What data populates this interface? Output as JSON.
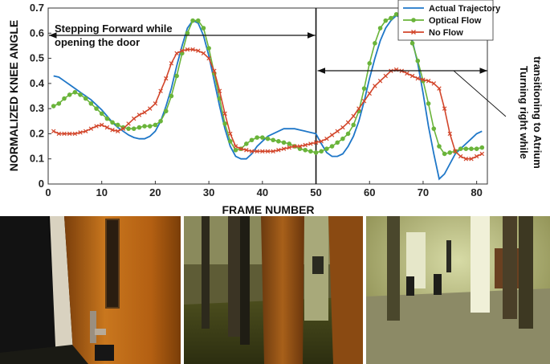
{
  "chart_data": {
    "type": "line",
    "xlabel": "FRAME NUMBER",
    "ylabel": "NORMALIZED KNEE ANGLE",
    "xlim": [
      0,
      82
    ],
    "ylim": [
      0,
      0.7
    ],
    "xticks": [
      0,
      10,
      20,
      30,
      40,
      50,
      60,
      70,
      80
    ],
    "yticks": [
      0,
      0.1,
      0.2,
      0.3,
      0.4,
      0.5,
      0.6,
      0.7
    ],
    "grid": false,
    "legend_position": "top-right",
    "vline_x": 50,
    "annotations": [
      {
        "lines": [
          "Stepping Forward while",
          "opening the door"
        ],
        "span": [
          0,
          50
        ]
      },
      {
        "lines": [
          "Turning right while",
          "transitioning to Atrium"
        ],
        "span": [
          50,
          82
        ]
      }
    ],
    "x": [
      1,
      2,
      3,
      4,
      5,
      6,
      7,
      8,
      9,
      10,
      11,
      12,
      13,
      14,
      15,
      16,
      17,
      18,
      19,
      20,
      21,
      22,
      23,
      24,
      25,
      26,
      27,
      28,
      29,
      30,
      31,
      32,
      33,
      34,
      35,
      36,
      37,
      38,
      39,
      40,
      41,
      42,
      43,
      44,
      45,
      46,
      47,
      48,
      49,
      50,
      51,
      52,
      53,
      54,
      55,
      56,
      57,
      58,
      59,
      60,
      61,
      62,
      63,
      64,
      65,
      66,
      67,
      68,
      69,
      70,
      71,
      72,
      73,
      74,
      75,
      76,
      77,
      78,
      79,
      80,
      81
    ],
    "series": [
      {
        "name": "Actual Trajectory",
        "color": "#1f77c8",
        "marker": "none",
        "values": [
          0.43,
          0.425,
          0.41,
          0.395,
          0.38,
          0.365,
          0.35,
          0.335,
          0.315,
          0.295,
          0.27,
          0.245,
          0.225,
          0.21,
          0.195,
          0.185,
          0.18,
          0.18,
          0.19,
          0.21,
          0.25,
          0.31,
          0.38,
          0.47,
          0.55,
          0.62,
          0.65,
          0.64,
          0.59,
          0.51,
          0.41,
          0.31,
          0.22,
          0.15,
          0.11,
          0.1,
          0.1,
          0.12,
          0.15,
          0.17,
          0.19,
          0.2,
          0.21,
          0.22,
          0.22,
          0.22,
          0.215,
          0.21,
          0.205,
          0.2,
          0.16,
          0.125,
          0.11,
          0.11,
          0.12,
          0.15,
          0.19,
          0.25,
          0.33,
          0.42,
          0.5,
          0.57,
          0.62,
          0.65,
          0.67,
          0.66,
          0.63,
          0.57,
          0.48,
          0.36,
          0.23,
          0.12,
          0.02,
          0.04,
          0.08,
          0.12,
          0.14,
          0.16,
          0.18,
          0.2,
          0.21
        ]
      },
      {
        "name": "Optical Flow",
        "color": "#6ab43a",
        "marker": "circle",
        "values": [
          0.31,
          0.32,
          0.34,
          0.355,
          0.365,
          0.355,
          0.34,
          0.32,
          0.3,
          0.28,
          0.26,
          0.245,
          0.235,
          0.225,
          0.22,
          0.22,
          0.225,
          0.23,
          0.23,
          0.235,
          0.25,
          0.29,
          0.35,
          0.43,
          0.52,
          0.6,
          0.65,
          0.65,
          0.62,
          0.54,
          0.44,
          0.34,
          0.24,
          0.17,
          0.135,
          0.14,
          0.16,
          0.175,
          0.185,
          0.185,
          0.18,
          0.175,
          0.17,
          0.165,
          0.16,
          0.15,
          0.14,
          0.135,
          0.13,
          0.125,
          0.13,
          0.14,
          0.15,
          0.165,
          0.18,
          0.2,
          0.235,
          0.29,
          0.38,
          0.48,
          0.56,
          0.62,
          0.65,
          0.66,
          0.675,
          0.66,
          0.62,
          0.56,
          0.49,
          0.41,
          0.32,
          0.22,
          0.15,
          0.12,
          0.125,
          0.13,
          0.14,
          0.14,
          0.14,
          0.14,
          0.145
        ]
      },
      {
        "name": "No Flow",
        "color": "#d2452a",
        "marker": "x",
        "values": [
          0.21,
          0.2,
          0.2,
          0.2,
          0.2,
          0.205,
          0.21,
          0.22,
          0.23,
          0.235,
          0.225,
          0.215,
          0.21,
          0.22,
          0.24,
          0.26,
          0.275,
          0.285,
          0.3,
          0.32,
          0.37,
          0.42,
          0.48,
          0.52,
          0.53,
          0.535,
          0.535,
          0.53,
          0.52,
          0.5,
          0.45,
          0.37,
          0.28,
          0.2,
          0.15,
          0.14,
          0.135,
          0.13,
          0.13,
          0.13,
          0.13,
          0.13,
          0.135,
          0.14,
          0.145,
          0.15,
          0.15,
          0.155,
          0.16,
          0.165,
          0.17,
          0.18,
          0.195,
          0.21,
          0.225,
          0.245,
          0.27,
          0.3,
          0.33,
          0.36,
          0.39,
          0.41,
          0.43,
          0.45,
          0.455,
          0.45,
          0.44,
          0.43,
          0.42,
          0.415,
          0.41,
          0.4,
          0.38,
          0.3,
          0.2,
          0.13,
          0.11,
          0.1,
          0.1,
          0.11,
          0.12
        ]
      }
    ]
  }
}
